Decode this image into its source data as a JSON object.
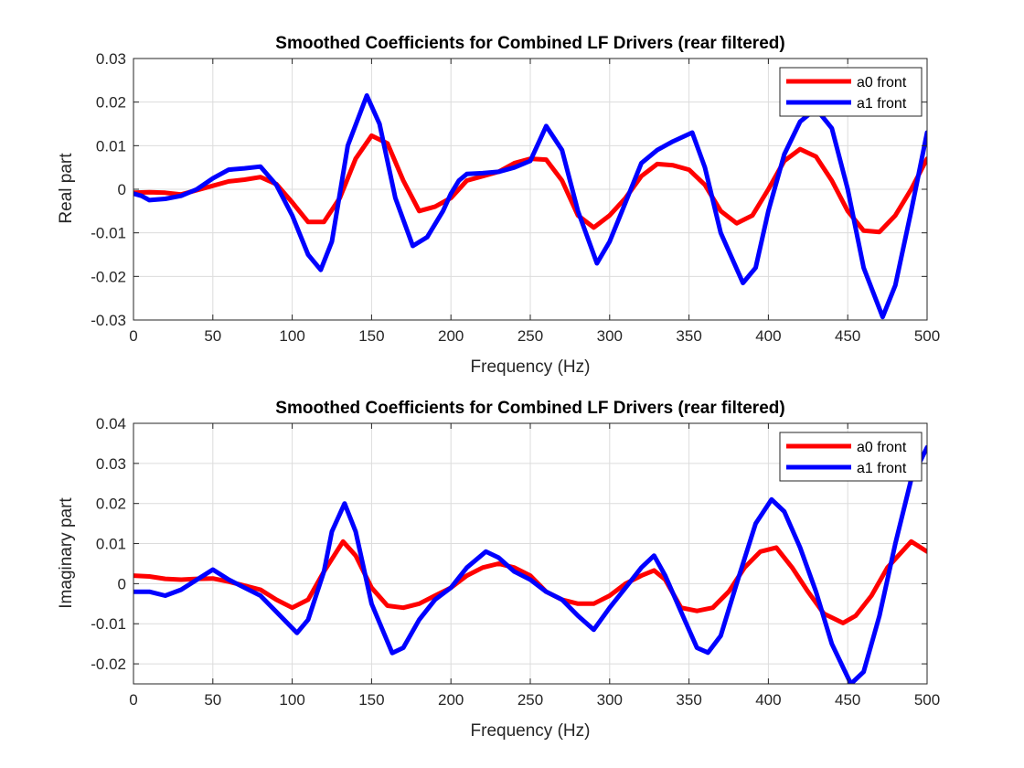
{
  "chart_data": [
    {
      "type": "line",
      "title": "Smoothed Coefficients for Combined LF Drivers (rear filtered)",
      "xlabel": "Frequency (Hz)",
      "ylabel": "Real part",
      "xlim": [
        0,
        500
      ],
      "ylim": [
        -0.03,
        0.03
      ],
      "xticks": [
        0,
        50,
        100,
        150,
        200,
        250,
        300,
        350,
        400,
        450,
        500
      ],
      "xtick_labels": [
        "0",
        "50",
        "100",
        "150",
        "200",
        "250",
        "300",
        "350",
        "400",
        "450",
        "500"
      ],
      "yticks": [
        -0.03,
        -0.02,
        -0.01,
        0,
        0.01,
        0.02,
        0.03
      ],
      "ytick_labels": [
        "-0.03",
        "-0.02",
        "-0.01",
        "0",
        "0.01",
        "0.02",
        "0.03"
      ],
      "grid": true,
      "legend_position": "top-right",
      "series": [
        {
          "name": "a0 front",
          "color": "#ff0000",
          "x": [
            0,
            10,
            20,
            30,
            40,
            50,
            60,
            70,
            80,
            90,
            100,
            110,
            120,
            130,
            140,
            150,
            160,
            170,
            180,
            190,
            200,
            210,
            220,
            230,
            240,
            250,
            260,
            270,
            280,
            290,
            300,
            310,
            320,
            330,
            340,
            350,
            360,
            370,
            380,
            390,
            400,
            410,
            420,
            430,
            440,
            450,
            460,
            470,
            480,
            490,
            500
          ],
          "y": [
            -0.0008,
            -0.0007,
            -0.0008,
            -0.0012,
            -0.0002,
            0.0008,
            0.0018,
            0.0022,
            0.0028,
            0.0012,
            -0.003,
            -0.0075,
            -0.0075,
            -0.002,
            0.007,
            0.0123,
            0.0105,
            0.002,
            -0.005,
            -0.004,
            -0.002,
            0.002,
            0.003,
            0.004,
            0.006,
            0.007,
            0.0068,
            0.002,
            -0.006,
            -0.0088,
            -0.006,
            -0.002,
            0.003,
            0.0058,
            0.0055,
            0.0045,
            0.001,
            -0.005,
            -0.0078,
            -0.006,
            0.0,
            0.0065,
            0.0092,
            0.0075,
            0.002,
            -0.005,
            -0.0095,
            -0.0098,
            -0.006,
            0.0,
            0.007
          ]
        },
        {
          "name": "a1 front",
          "color": "#0000ff",
          "x": [
            0,
            5,
            10,
            20,
            30,
            40,
            50,
            60,
            70,
            80,
            90,
            100,
            110,
            118,
            125,
            135,
            147,
            155,
            165,
            176,
            185,
            195,
            200,
            205,
            210,
            220,
            230,
            240,
            250,
            260,
            270,
            280,
            292,
            300,
            310,
            320,
            330,
            340,
            352,
            360,
            370,
            384,
            392,
            400,
            410,
            420,
            430,
            440,
            450,
            460,
            472,
            480,
            490,
            500
          ],
          "y": [
            -0.001,
            -0.0015,
            -0.0025,
            -0.0022,
            -0.0015,
            0.0,
            0.0025,
            0.0045,
            0.0048,
            0.0052,
            0.001,
            -0.006,
            -0.015,
            -0.0185,
            -0.012,
            0.01,
            0.0215,
            0.015,
            -0.002,
            -0.013,
            -0.011,
            -0.005,
            -0.001,
            0.002,
            0.0035,
            0.0037,
            0.004,
            0.005,
            0.0065,
            0.0145,
            0.009,
            -0.005,
            -0.017,
            -0.012,
            -0.003,
            0.006,
            0.009,
            0.011,
            0.013,
            0.005,
            -0.01,
            -0.0215,
            -0.018,
            -0.005,
            0.008,
            0.0155,
            0.0185,
            0.014,
            0.0,
            -0.018,
            -0.0293,
            -0.022,
            -0.005,
            0.013
          ]
        }
      ]
    },
    {
      "type": "line",
      "title": "Smoothed Coefficients for Combined LF Drivers (rear filtered)",
      "xlabel": "Frequency (Hz)",
      "ylabel": "Imaginary part",
      "xlim": [
        0,
        500
      ],
      "ylim": [
        -0.025,
        0.04
      ],
      "xticks": [
        0,
        50,
        100,
        150,
        200,
        250,
        300,
        350,
        400,
        450,
        500
      ],
      "xtick_labels": [
        "0",
        "50",
        "100",
        "150",
        "200",
        "250",
        "300",
        "350",
        "400",
        "450",
        "500"
      ],
      "yticks": [
        -0.02,
        -0.01,
        0,
        0.01,
        0.02,
        0.03,
        0.04
      ],
      "ytick_labels": [
        "-0.02",
        "-0.01",
        "0",
        "0.01",
        "0.02",
        "0.03",
        "0.04"
      ],
      "grid": true,
      "legend_position": "top-right",
      "series": [
        {
          "name": "a0 front",
          "color": "#ff0000",
          "x": [
            0,
            10,
            20,
            30,
            40,
            50,
            60,
            70,
            80,
            90,
            100,
            110,
            120,
            132,
            140,
            150,
            160,
            170,
            180,
            190,
            200,
            210,
            220,
            230,
            240,
            250,
            260,
            270,
            280,
            290,
            300,
            310,
            320,
            328,
            335,
            345,
            355,
            365,
            375,
            385,
            395,
            405,
            415,
            425,
            435,
            447,
            455,
            465,
            475,
            490,
            500
          ],
          "y": [
            0.002,
            0.0018,
            0.0012,
            0.001,
            0.0012,
            0.0013,
            0.0005,
            -0.0005,
            -0.0015,
            -0.004,
            -0.006,
            -0.004,
            0.003,
            0.0105,
            0.007,
            -0.001,
            -0.0055,
            -0.006,
            -0.005,
            -0.003,
            -0.001,
            0.002,
            0.004,
            0.005,
            0.004,
            0.002,
            -0.002,
            -0.004,
            -0.005,
            -0.005,
            -0.003,
            0.0,
            0.002,
            0.0033,
            0.001,
            -0.006,
            -0.0068,
            -0.006,
            -0.002,
            0.004,
            0.008,
            0.009,
            0.004,
            -0.002,
            -0.0075,
            -0.0098,
            -0.008,
            -0.003,
            0.004,
            0.0105,
            0.008
          ]
        },
        {
          "name": "a1 front",
          "color": "#0000ff",
          "x": [
            0,
            10,
            20,
            30,
            40,
            50,
            60,
            70,
            80,
            90,
            103,
            110,
            120,
            125,
            133,
            140,
            150,
            163,
            170,
            180,
            190,
            200,
            210,
            222,
            230,
            240,
            250,
            260,
            270,
            280,
            290,
            300,
            310,
            320,
            328,
            335,
            345,
            355,
            362,
            370,
            380,
            392,
            402,
            410,
            420,
            430,
            440,
            452,
            460,
            470,
            480,
            490,
            500
          ],
          "y": [
            -0.002,
            -0.002,
            -0.003,
            -0.0015,
            0.001,
            0.0035,
            0.001,
            -0.001,
            -0.003,
            -0.007,
            -0.0123,
            -0.009,
            0.003,
            0.013,
            0.02,
            0.013,
            -0.005,
            -0.0173,
            -0.016,
            -0.009,
            -0.004,
            -0.001,
            0.004,
            0.008,
            0.0065,
            0.003,
            0.001,
            -0.002,
            -0.004,
            -0.008,
            -0.0115,
            -0.006,
            -0.001,
            0.004,
            0.007,
            0.002,
            -0.007,
            -0.016,
            -0.0172,
            -0.013,
            0.0,
            0.015,
            0.021,
            0.018,
            0.009,
            -0.002,
            -0.015,
            -0.025,
            -0.022,
            -0.008,
            0.01,
            0.026,
            0.034
          ]
        }
      ]
    }
  ]
}
